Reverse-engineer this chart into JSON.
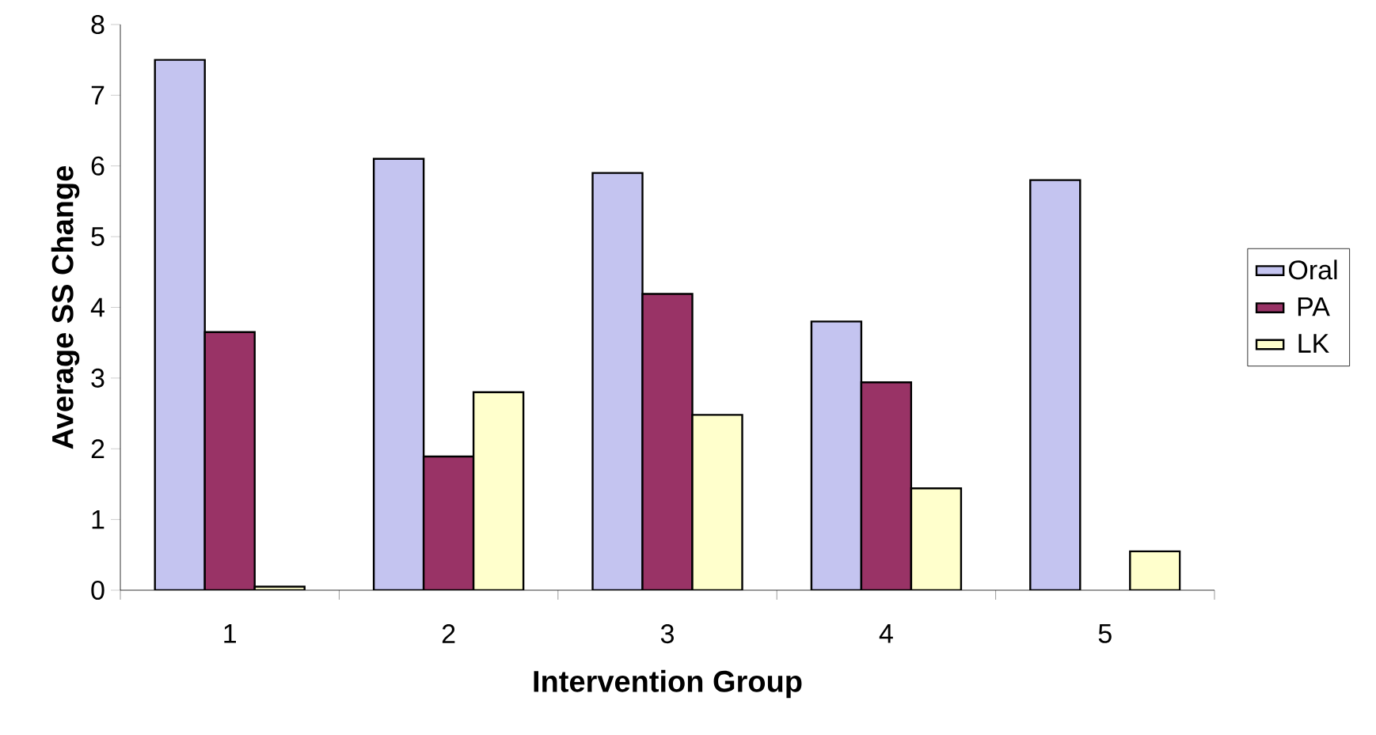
{
  "chart_data": {
    "type": "bar",
    "xlabel": "Intervention Group",
    "ylabel": "Average SS Change",
    "categories": [
      "1",
      "2",
      "3",
      "4",
      "5"
    ],
    "series": [
      {
        "name": "Oral",
        "color": "#c4c4f0",
        "values": [
          7.5,
          6.1,
          5.9,
          3.8,
          5.8
        ]
      },
      {
        "name": "PA",
        "color": "#993366",
        "values": [
          3.65,
          1.89,
          4.19,
          2.94,
          null
        ]
      },
      {
        "name": "LK",
        "color": "#ffffcc",
        "values": [
          0.05,
          2.8,
          2.48,
          1.44,
          0.55
        ]
      }
    ],
    "ylim": [
      0,
      8
    ],
    "yticks": [
      0,
      1,
      2,
      3,
      4,
      5,
      6,
      7,
      8
    ],
    "grid": false,
    "legend": "right"
  }
}
